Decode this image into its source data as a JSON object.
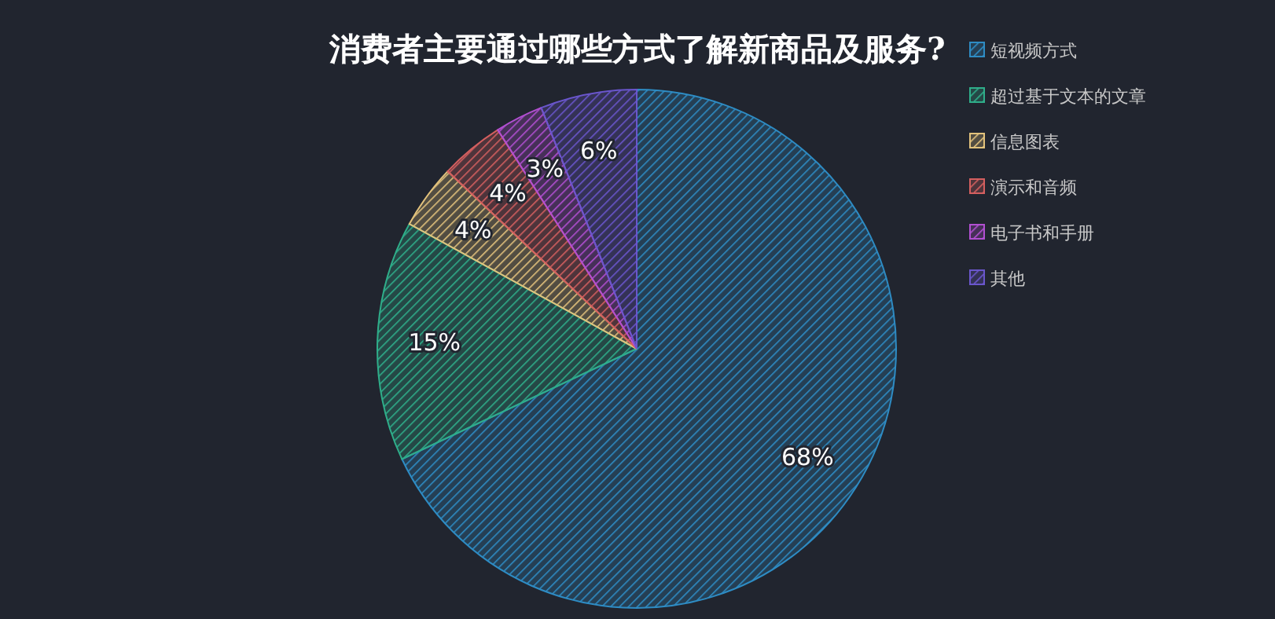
{
  "chart_data": {
    "type": "pie",
    "title": "消费者主要通过哪些方式了解新商品及服务?",
    "categories": [
      "短视频方式",
      "超过基于文本的文章",
      "信息图表",
      "演示和音频",
      "电子书和手册",
      "其他"
    ],
    "values": [
      68,
      15,
      4,
      4,
      3,
      6
    ],
    "colors": [
      "#2e8cc4",
      "#2fae8a",
      "#e2c27c",
      "#d45f5f",
      "#b24fd2",
      "#6a56cc"
    ],
    "value_labels": [
      "68%",
      "15%",
      "4%",
      "4%",
      "3%",
      "6%"
    ],
    "legend": "top right"
  }
}
